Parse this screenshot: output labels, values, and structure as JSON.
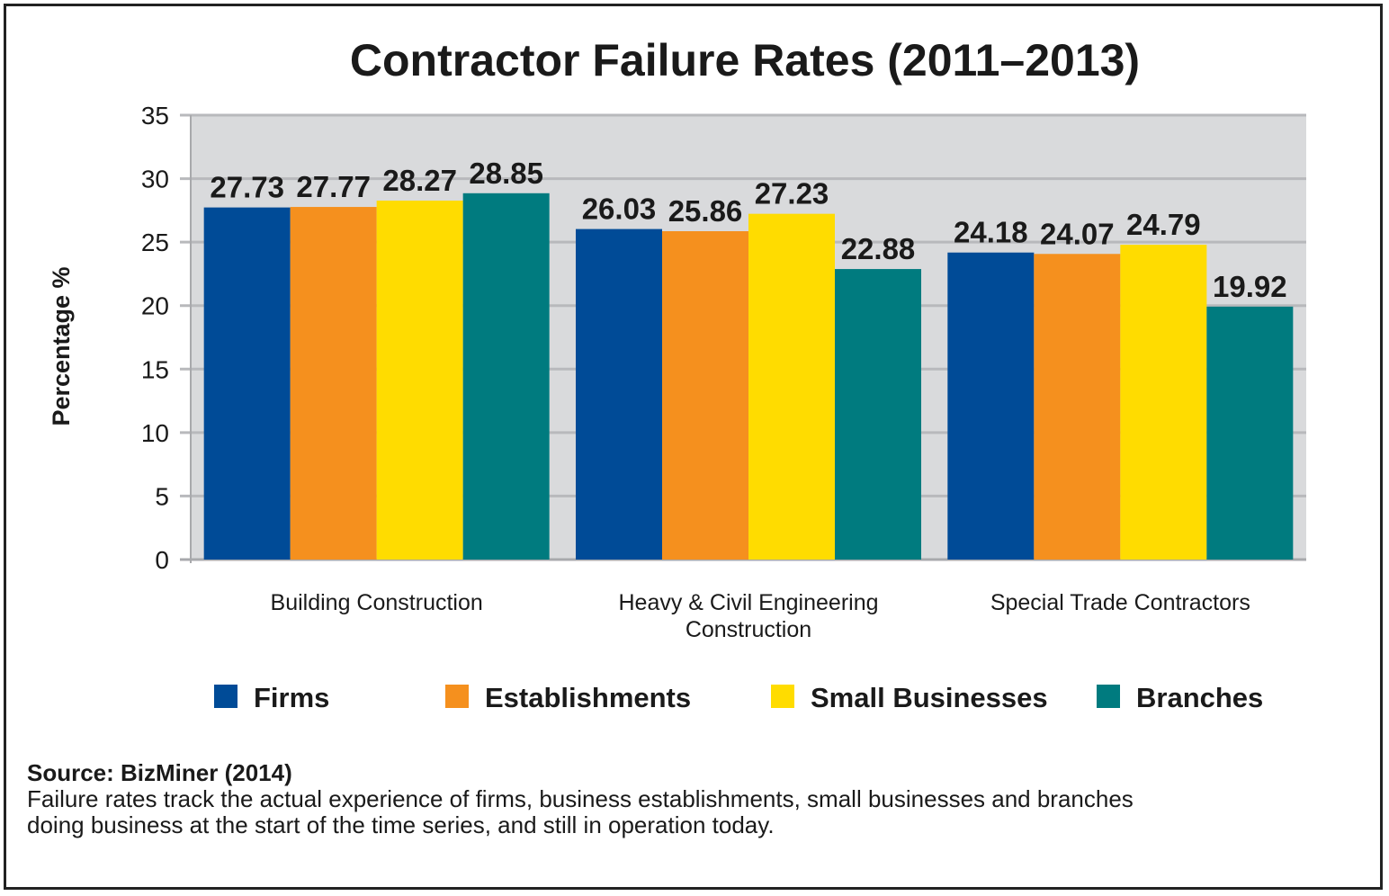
{
  "chart_data": {
    "type": "bar",
    "title": "Contractor Failure Rates (2011–2013)",
    "ylabel": "Percentage %",
    "xlabel": "",
    "ylim": [
      0,
      35
    ],
    "yticks": [
      0,
      5,
      10,
      15,
      20,
      25,
      30,
      35
    ],
    "grid": true,
    "legend_position": "bottom",
    "categories": [
      [
        "Building Construction"
      ],
      [
        "Heavy & Civil Engineering",
        "Construction"
      ],
      [
        "Special Trade Contractors"
      ]
    ],
    "series": [
      {
        "name": "Firms",
        "color": "#004b97",
        "values": [
          27.73,
          26.03,
          24.18
        ]
      },
      {
        "name": "Establishments",
        "color": "#f5901e",
        "values": [
          27.77,
          25.86,
          24.07
        ]
      },
      {
        "name": "Small Businesses",
        "color": "#ffdc00",
        "values": [
          28.27,
          27.23,
          24.79
        ]
      },
      {
        "name": "Branches",
        "color": "#007b7f",
        "values": [
          28.85,
          22.88,
          19.92
        ]
      }
    ],
    "data_labels": [
      [
        "27.73",
        "26.03",
        "24.18"
      ],
      [
        "27.77",
        "25.86",
        "24.07"
      ],
      [
        "28.27",
        "27.23",
        "24.79"
      ],
      [
        "28.85",
        "22.88",
        "19.92"
      ]
    ],
    "plot_background": "#d9dadc",
    "gridline_color": "#b8b9bc"
  },
  "source": {
    "title": "Source: BizMiner (2014)",
    "lines": [
      "Failure rates track the actual experience of  firms, business establishments, small businesses and branches",
      "doing business at the start of the time series, and still in operation today."
    ]
  }
}
